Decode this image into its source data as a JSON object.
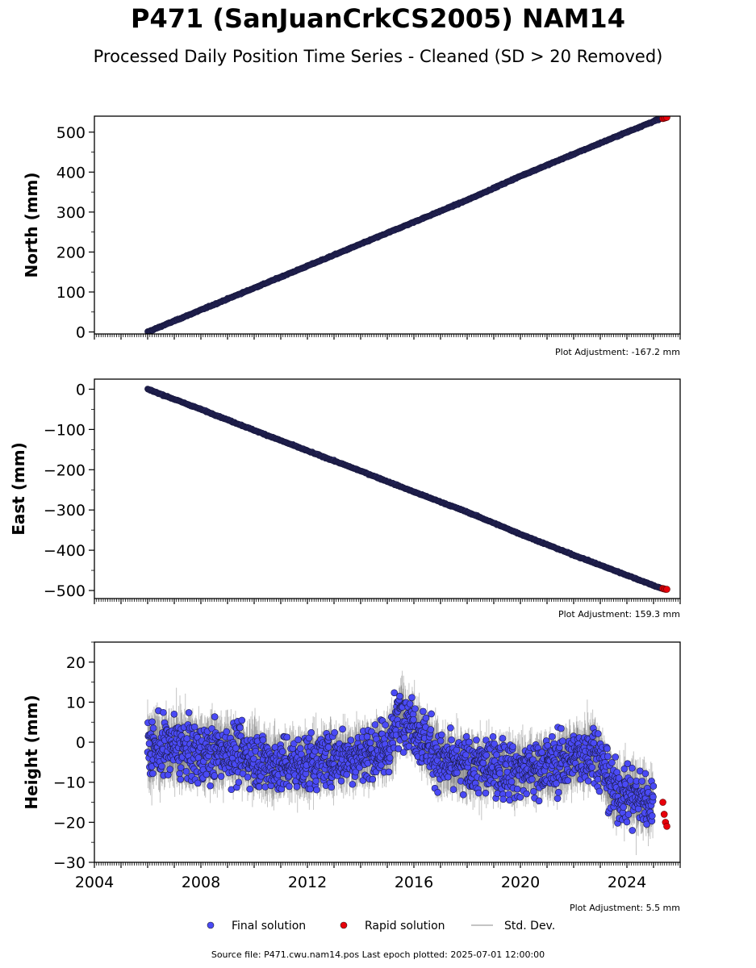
{
  "title": "P471 (SanJuanCrkCS2005) NAM14",
  "subtitle": "Processed Daily Position Time Series - Cleaned (SD > 20 Removed)",
  "source_line": "Source file: P471.cwu.nam14.pos  Last epoch plotted: 2025-07-01 12:00:00",
  "colors": {
    "final": "#4a4af5",
    "rapid": "#e8000b",
    "stddev": "#b0b0b0",
    "axis": "#000000"
  },
  "legend": [
    {
      "label": "Final solution",
      "marker": "dot",
      "color": "#4a4af5"
    },
    {
      "label": "Rapid solution",
      "marker": "dot",
      "color": "#e8000b"
    },
    {
      "label": "Std. Dev.",
      "marker": "line",
      "color": "#b0b0b0"
    }
  ],
  "chart_data": [
    {
      "type": "scatter",
      "ylabel": "North (mm)",
      "adjustment": "Plot Adjustment: -167.2 mm",
      "xlim": [
        2004,
        2026
      ],
      "ylim": [
        -5,
        540
      ],
      "yticks": [
        0,
        100,
        200,
        300,
        400,
        500
      ],
      "xtick_labels_shown": false,
      "series": [
        {
          "name": "Final solution",
          "x": [
            2006.0,
            2008.0,
            2010.0,
            2012.0,
            2014.0,
            2016.0,
            2018.0,
            2020.0,
            2022.0,
            2024.0,
            2025.3
          ],
          "y": [
            0,
            55,
            110,
            165,
            220,
            275,
            330,
            390,
            445,
            500,
            535
          ]
        },
        {
          "name": "Rapid solution",
          "x": [
            2025.35,
            2025.4,
            2025.45,
            2025.5
          ],
          "y": [
            534,
            535,
            536,
            537
          ]
        }
      ]
    },
    {
      "type": "scatter",
      "ylabel": "East (mm)",
      "adjustment": "Plot Adjustment: 159.3 mm",
      "xlim": [
        2004,
        2026
      ],
      "ylim": [
        -520,
        25
      ],
      "yticks": [
        0,
        -100,
        -200,
        -300,
        -400,
        -500
      ],
      "xtick_labels_shown": false,
      "series": [
        {
          "name": "Final solution",
          "x": [
            2006.0,
            2008.0,
            2010.0,
            2012.0,
            2014.0,
            2016.0,
            2018.0,
            2020.0,
            2022.0,
            2024.0,
            2025.3
          ],
          "y": [
            0,
            -50,
            -102,
            -153,
            -203,
            -255,
            -305,
            -360,
            -412,
            -462,
            -495
          ]
        },
        {
          "name": "Rapid solution",
          "x": [
            2025.35,
            2025.4,
            2025.45,
            2025.5
          ],
          "y": [
            -495,
            -496,
            -497,
            -497
          ]
        }
      ]
    },
    {
      "type": "scatter",
      "ylabel": "Height (mm)",
      "adjustment": "Plot Adjustment: 5.5 mm",
      "xlim": [
        2004,
        2026
      ],
      "ylim": [
        -30,
        25
      ],
      "yticks": [
        20,
        10,
        0,
        -10,
        -20,
        -30
      ],
      "xticks": [
        2004,
        2008,
        2012,
        2016,
        2020,
        2024
      ],
      "xtick_labels_shown": true,
      "series": [
        {
          "name": "Final solution",
          "x": [
            2006.0,
            2007.0,
            2008.0,
            2009.0,
            2010.0,
            2011.0,
            2012.0,
            2013.0,
            2014.0,
            2015.0,
            2015.5,
            2016.0,
            2017.0,
            2018.0,
            2019.0,
            2020.0,
            2021.0,
            2022.0,
            2022.8,
            2023.5,
            2024.0,
            2024.5,
            2025.0
          ],
          "y": [
            -2,
            -1,
            -3,
            -2,
            -4,
            -6,
            -5,
            -4,
            -3,
            -2,
            8,
            4,
            -5,
            -6,
            -6,
            -7,
            -6,
            -4,
            -2,
            -12,
            -13,
            -14,
            -15
          ]
        },
        {
          "name": "Rapid solution",
          "x": [
            2025.35,
            2025.4,
            2025.45,
            2025.5
          ],
          "y": [
            -15,
            -18,
            -20,
            -21
          ]
        },
        {
          "name": "Std. Dev.",
          "x": [
            2006.0,
            2010.0,
            2014.0,
            2018.0,
            2022.0,
            2025.0
          ],
          "y": [
            7,
            6,
            6,
            6,
            6,
            6
          ]
        }
      ]
    }
  ]
}
